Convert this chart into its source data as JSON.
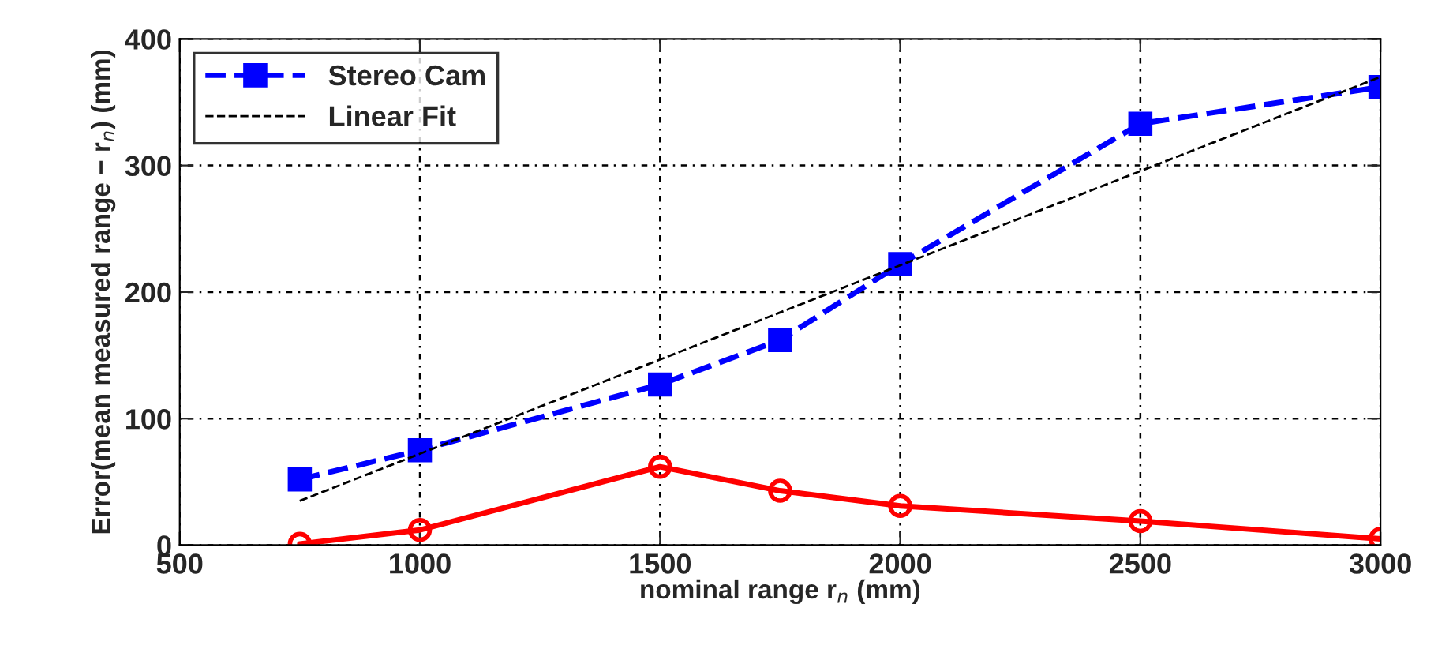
{
  "chart_data": {
    "type": "line",
    "xlabel": "nominal range r$_{n}$ (mm)",
    "ylabel": "Error(mean measured range − r$_{n}$) (mm)",
    "x": [
      750,
      1000,
      1500,
      1750,
      2000,
      2500,
      3000
    ],
    "series": [
      {
        "name": "Stereo Cam",
        "color": "#0000ff",
        "values": [
          52,
          75,
          127,
          162,
          222,
          333,
          362
        ],
        "marker": "square",
        "line_style": "dashed"
      },
      {
        "name": "Linear Fit",
        "color": "#000000",
        "x": [
          750,
          3000
        ],
        "values": [
          35,
          370
        ],
        "marker": "none",
        "line_style": "dashed"
      },
      {
        "color": "#ff0000",
        "values": [
          1,
          12,
          62,
          43,
          31,
          19,
          5
        ],
        "marker": "circle",
        "line_style": "solid"
      }
    ],
    "xlim": [
      500,
      3000
    ],
    "xticks": [
      500,
      1000,
      1500,
      2000,
      2500,
      3000
    ],
    "ylim": [
      0,
      400
    ],
    "yticks": [
      0,
      100,
      200,
      300,
      400
    ],
    "grid": true,
    "legend": "top left"
  }
}
